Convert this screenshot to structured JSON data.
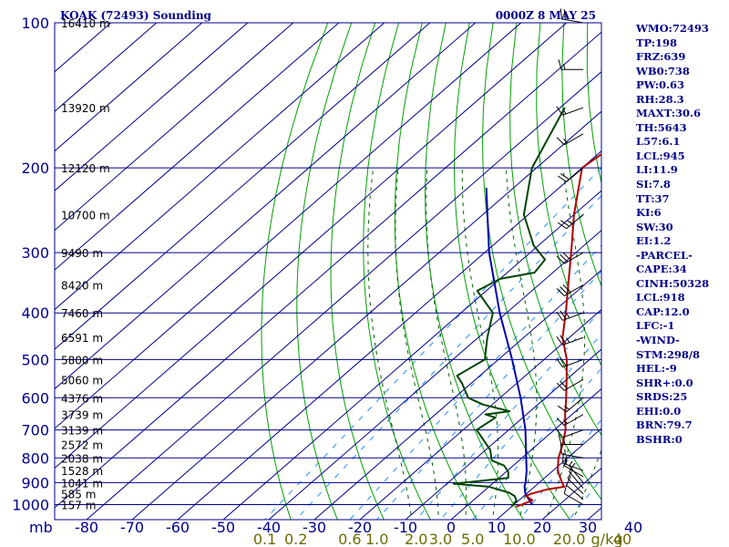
{
  "header": {
    "station": "KOAK (72493) Sounding",
    "time": "0000Z  8 MAY 25"
  },
  "units": {
    "pressure": "mb",
    "mixing_ratio": "g/kg"
  },
  "indices": [
    "WMO:72493",
    "TP:198",
    "FRZ:639",
    "WB0:738",
    "PW:0.63",
    "RH:28.3",
    "MAXT:30.6",
    "TH:5643",
    "L57:6.1",
    "LCL:945",
    "LI:11.9",
    "SI:7.8",
    "TT:37",
    "KI:6",
    "SW:30",
    "EI:1.2",
    "-PARCEL-",
    "CAPE:34",
    "CINH:50328",
    "LCL:918",
    "CAP:12.0",
    "LFC:-1",
    "-WIND-",
    "STM:298/8",
    "HEL:-9",
    "SHR+:0.0",
    "SRDS:25",
    "EHI:0.0",
    "BRN:79.7",
    "BSHR:0"
  ],
  "colors": {
    "grid": "#00008b",
    "dry_adiabat": "#00a000",
    "moist_adiabat": "#006000",
    "mixing_ratio": "#1e90ff",
    "temperature": "#b00000",
    "dewpoint": "#004400",
    "parcel": "#0000b0",
    "wind": "#000000"
  },
  "chart_data": {
    "type": "skew-T log-P sounding",
    "pressure_axis": {
      "ticks": [
        100,
        200,
        300,
        400,
        500,
        600,
        700,
        800,
        900,
        1000
      ],
      "range_mb": [
        100,
        1050
      ],
      "scale": "log"
    },
    "temperature_axis": {
      "ticks": [
        -80,
        -70,
        -60,
        -50,
        -40,
        -30,
        -20,
        -10,
        0,
        10,
        20,
        30,
        40
      ],
      "unit": "C"
    },
    "mixing_ratio_lines": {
      "values": [
        0.1,
        0.2,
        0.6,
        1.0,
        2.0,
        3.0,
        5.0,
        10.0,
        20.0,
        40.0
      ],
      "labels": [
        "0.1",
        "0.2",
        "0.6",
        "1.0",
        "2.0",
        "3.0",
        "5.0",
        "10.0",
        "20.0",
        "40"
      ]
    },
    "height_labels": [
      {
        "pressure": 1000,
        "label": "157 m"
      },
      {
        "pressure": 950,
        "label": "585 m"
      },
      {
        "pressure": 900,
        "label": "1041 m"
      },
      {
        "pressure": 850,
        "label": "1528 m"
      },
      {
        "pressure": 800,
        "label": "2038 m"
      },
      {
        "pressure": 750,
        "label": "2572 m"
      },
      {
        "pressure": 700,
        "label": "3139 m"
      },
      {
        "pressure": 650,
        "label": "3739 m"
      },
      {
        "pressure": 600,
        "label": "4376 m"
      },
      {
        "pressure": 550,
        "label": "5060 m"
      },
      {
        "pressure": 500,
        "label": "5800 m"
      },
      {
        "pressure": 450,
        "label": "6591 m"
      },
      {
        "pressure": 400,
        "label": "7460 m"
      },
      {
        "pressure": 350,
        "label": "8420 m"
      },
      {
        "pressure": 300,
        "label": "9490 m"
      },
      {
        "pressure": 250,
        "label": "10700 m"
      },
      {
        "pressure": 200,
        "label": "12120 m"
      },
      {
        "pressure": 150,
        "label": "13920 m"
      },
      {
        "pressure": 100,
        "label": "16410 m"
      }
    ],
    "temperature": [
      [
        1010,
        11.0
      ],
      [
        980,
        13.0
      ],
      [
        960,
        10.5
      ],
      [
        950,
        11.0
      ],
      [
        930,
        13.5
      ],
      [
        918,
        16.5
      ],
      [
        900,
        15.0
      ],
      [
        850,
        11.0
      ],
      [
        800,
        8.0
      ],
      [
        750,
        5.5
      ],
      [
        700,
        2.5
      ],
      [
        650,
        -1.5
      ],
      [
        600,
        -5.5
      ],
      [
        550,
        -10.0
      ],
      [
        500,
        -15.0
      ],
      [
        450,
        -21.5
      ],
      [
        400,
        -27.0
      ],
      [
        350,
        -33.5
      ],
      [
        300,
        -41.0
      ],
      [
        250,
        -50.0
      ],
      [
        200,
        -60.0
      ],
      [
        170,
        -58.0
      ],
      [
        150,
        -58.0
      ],
      [
        120,
        -59.0
      ],
      [
        100,
        -59.0
      ]
    ],
    "dewpoint": [
      [
        1010,
        10.0
      ],
      [
        980,
        9.5
      ],
      [
        960,
        8.0
      ],
      [
        945,
        6.0
      ],
      [
        918,
        0.0
      ],
      [
        905,
        -8.5
      ],
      [
        880,
        2.0
      ],
      [
        855,
        0.5
      ],
      [
        830,
        -2.0
      ],
      [
        810,
        -6.0
      ],
      [
        770,
        -9.0
      ],
      [
        700,
        -17.0
      ],
      [
        660,
        -16.0
      ],
      [
        650,
        -19.0
      ],
      [
        640,
        -14.5
      ],
      [
        620,
        -22.0
      ],
      [
        600,
        -27.0
      ],
      [
        560,
        -32.0
      ],
      [
        540,
        -35.0
      ],
      [
        500,
        -33.0
      ],
      [
        450,
        -38.0
      ],
      [
        400,
        -43.0
      ],
      [
        360,
        -52.0
      ],
      [
        340,
        -50.0
      ],
      [
        330,
        -44.0
      ],
      [
        310,
        -45.0
      ],
      [
        290,
        -51.0
      ],
      [
        250,
        -61.0
      ],
      [
        200,
        -71.0
      ],
      [
        150,
        -79.0
      ]
    ],
    "parcel": [
      [
        1000,
        14.0
      ],
      [
        970,
        11.5
      ],
      [
        945,
        9.5
      ],
      [
        918,
        7.8
      ],
      [
        900,
        7.0
      ],
      [
        850,
        4.2
      ],
      [
        800,
        0.9
      ],
      [
        700,
        -6.3
      ],
      [
        600,
        -15.5
      ],
      [
        500,
        -27.0
      ],
      [
        400,
        -41.5
      ],
      [
        300,
        -59.0
      ],
      [
        250,
        -69.0
      ],
      [
        220,
        -76.0
      ]
    ],
    "wind_barbs": [
      {
        "pressure": 1000,
        "direction": 300,
        "speed_kt": 10
      },
      {
        "pressure": 975,
        "direction": 310,
        "speed_kt": 10
      },
      {
        "pressure": 950,
        "direction": 315,
        "speed_kt": 10
      },
      {
        "pressure": 925,
        "direction": 320,
        "speed_kt": 10
      },
      {
        "pressure": 900,
        "direction": 320,
        "speed_kt": 5
      },
      {
        "pressure": 875,
        "direction": 300,
        "speed_kt": 10
      },
      {
        "pressure": 850,
        "direction": 290,
        "speed_kt": 15
      },
      {
        "pressure": 800,
        "direction": 280,
        "speed_kt": 15
      },
      {
        "pressure": 750,
        "direction": 270,
        "speed_kt": 15
      },
      {
        "pressure": 700,
        "direction": 250,
        "speed_kt": 10
      },
      {
        "pressure": 650,
        "direction": 240,
        "speed_kt": 15
      },
      {
        "pressure": 600,
        "direction": 230,
        "speed_kt": 15
      },
      {
        "pressure": 550,
        "direction": 240,
        "speed_kt": 20
      },
      {
        "pressure": 500,
        "direction": 250,
        "speed_kt": 20
      },
      {
        "pressure": 450,
        "direction": 250,
        "speed_kt": 25
      },
      {
        "pressure": 400,
        "direction": 250,
        "speed_kt": 25
      },
      {
        "pressure": 350,
        "direction": 240,
        "speed_kt": 30
      },
      {
        "pressure": 300,
        "direction": 240,
        "speed_kt": 30
      },
      {
        "pressure": 250,
        "direction": 230,
        "speed_kt": 25
      },
      {
        "pressure": 200,
        "direction": 230,
        "speed_kt": 20
      },
      {
        "pressure": 170,
        "direction": 240,
        "speed_kt": 15
      },
      {
        "pressure": 150,
        "direction": 250,
        "speed_kt": 15
      },
      {
        "pressure": 125,
        "direction": 270,
        "speed_kt": 15
      },
      {
        "pressure": 100,
        "direction": 280,
        "speed_kt": 20
      }
    ]
  }
}
